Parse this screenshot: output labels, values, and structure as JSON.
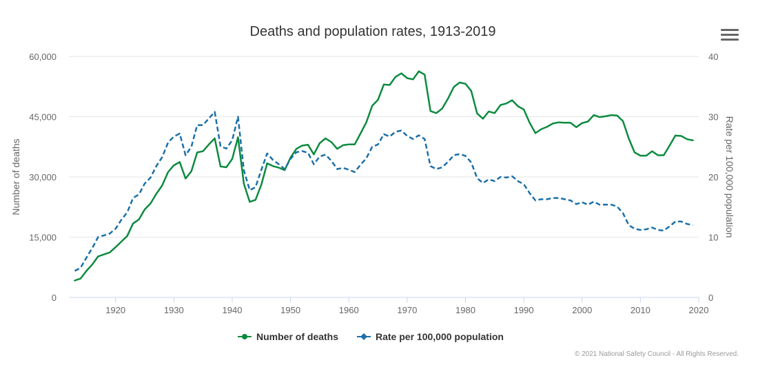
{
  "chart_data": {
    "type": "line",
    "title": "Deaths and population rates, 1913-2019",
    "ylabel_left": "Number of deaths",
    "ylabel_right": "Rate per 100,000 population",
    "xlim": [
      1912,
      2020
    ],
    "ylim_left": [
      0,
      60000
    ],
    "ylim_right": [
      0,
      40
    ],
    "x_ticks": [
      1920,
      1930,
      1940,
      1950,
      1960,
      1970,
      1980,
      1990,
      2000,
      2010,
      2020
    ],
    "y_left_ticks": [
      "0",
      "15,000",
      "30,000",
      "45,000",
      "60,000"
    ],
    "y_left_values": [
      0,
      15000,
      30000,
      45000,
      60000
    ],
    "y_right_ticks": [
      "0",
      "10",
      "20",
      "30",
      "40"
    ],
    "y_right_values": [
      0,
      10,
      20,
      30,
      40
    ],
    "grid": "horizontal",
    "legend_position": "bottom-center",
    "series": [
      {
        "name": "Number of deaths",
        "axis": "left",
        "color": "#0b8a3e",
        "style": "solid",
        "x": [
          1913,
          1914,
          1915,
          1916,
          1917,
          1918,
          1919,
          1920,
          1921,
          1922,
          1923,
          1924,
          1925,
          1926,
          1927,
          1928,
          1929,
          1930,
          1931,
          1932,
          1933,
          1934,
          1935,
          1936,
          1937,
          1938,
          1939,
          1940,
          1941,
          1942,
          1943,
          1944,
          1945,
          1946,
          1947,
          1948,
          1949,
          1950,
          1951,
          1952,
          1953,
          1954,
          1955,
          1956,
          1957,
          1958,
          1959,
          1960,
          1961,
          1962,
          1963,
          1964,
          1965,
          1966,
          1967,
          1968,
          1969,
          1970,
          1971,
          1972,
          1973,
          1974,
          1975,
          1976,
          1977,
          1978,
          1979,
          1980,
          1981,
          1982,
          1983,
          1984,
          1985,
          1986,
          1987,
          1988,
          1989,
          1990,
          1991,
          1992,
          1993,
          1994,
          1995,
          1996,
          1997,
          1998,
          1999,
          2000,
          2001,
          2002,
          2003,
          2004,
          2005,
          2006,
          2007,
          2008,
          2009,
          2010,
          2011,
          2012,
          2013,
          2014,
          2015,
          2016,
          2017,
          2018,
          2019
        ],
        "values": [
          4200,
          4700,
          6600,
          8200,
          10200,
          10700,
          11200,
          12500,
          13900,
          15300,
          18400,
          19400,
          21900,
          23400,
          25800,
          27900,
          31200,
          32900,
          33700,
          29600,
          31400,
          36100,
          36400,
          38100,
          39600,
          32600,
          32400,
          34500,
          39900,
          28300,
          23800,
          24300,
          28100,
          33400,
          32700,
          32300,
          31700,
          34800,
          37000,
          37800,
          38000,
          35600,
          38400,
          39600,
          38700,
          37000,
          37900,
          38100,
          38100,
          40800,
          43600,
          47700,
          49200,
          53000,
          52900,
          54900,
          55800,
          54600,
          54300,
          56300,
          55500,
          46400,
          45900,
          47000,
          49500,
          52400,
          53500,
          53200,
          51400,
          45800,
          44500,
          46300,
          45900,
          47900,
          48300,
          49100,
          47600,
          46800,
          43500,
          40900,
          41900,
          42500,
          43300,
          43600,
          43500,
          43500,
          42400,
          43400,
          43800,
          45400,
          44900,
          45100,
          45400,
          45300,
          43900,
          39600,
          36100,
          35300,
          35300,
          36400,
          35400,
          35400,
          37800,
          40300,
          40200,
          39400,
          39100
        ]
      },
      {
        "name": "Rate per 100,000 population",
        "axis": "right",
        "color": "#1a6fa8",
        "style": "dashed",
        "x": [
          1913,
          1914,
          1915,
          1916,
          1917,
          1918,
          1919,
          1920,
          1921,
          1922,
          1923,
          1924,
          1925,
          1926,
          1927,
          1928,
          1929,
          1930,
          1931,
          1932,
          1933,
          1934,
          1935,
          1936,
          1937,
          1938,
          1939,
          1940,
          1941,
          1942,
          1943,
          1944,
          1945,
          1946,
          1947,
          1948,
          1949,
          1950,
          1951,
          1952,
          1953,
          1954,
          1955,
          1956,
          1957,
          1958,
          1959,
          1960,
          1961,
          1962,
          1963,
          1964,
          1965,
          1966,
          1967,
          1968,
          1969,
          1970,
          1971,
          1972,
          1973,
          1974,
          1975,
          1976,
          1977,
          1978,
          1979,
          1980,
          1981,
          1982,
          1983,
          1984,
          1985,
          1986,
          1987,
          1988,
          1989,
          1990,
          1991,
          1992,
          1993,
          1994,
          1995,
          1996,
          1997,
          1998,
          1999,
          2000,
          2001,
          2002,
          2003,
          2004,
          2005,
          2006,
          2007,
          2008,
          2009,
          2010,
          2011,
          2012,
          2013,
          2014,
          2015,
          2016,
          2017,
          2018,
          2019
        ],
        "values": [
          4.4,
          4.9,
          6.6,
          8.2,
          10.0,
          10.3,
          10.6,
          11.4,
          12.9,
          14.1,
          16.5,
          17.1,
          18.9,
          19.9,
          21.8,
          23.3,
          25.7,
          26.7,
          27.2,
          23.6,
          25.0,
          28.6,
          28.6,
          29.7,
          30.8,
          25.1,
          24.7,
          26.1,
          30.0,
          21.1,
          17.8,
          18.3,
          21.2,
          23.9,
          22.8,
          22.1,
          21.3,
          23.0,
          24.1,
          24.3,
          24.0,
          22.1,
          23.4,
          23.7,
          22.7,
          21.3,
          21.5,
          21.2,
          20.8,
          22.0,
          23.1,
          25.0,
          25.4,
          27.1,
          26.7,
          27.5,
          27.7,
          26.8,
          26.3,
          26.9,
          26.3,
          21.8,
          21.3,
          21.6,
          22.5,
          23.6,
          23.8,
          23.5,
          22.4,
          19.8,
          19.0,
          19.6,
          19.3,
          20.0,
          19.9,
          20.1,
          19.3,
          18.8,
          17.3,
          16.1,
          16.3,
          16.3,
          16.5,
          16.5,
          16.3,
          16.1,
          15.5,
          15.8,
          15.4,
          15.9,
          15.4,
          15.4,
          15.4,
          15.1,
          14.0,
          12.0,
          11.4,
          11.2,
          11.3,
          11.6,
          11.2,
          11.1,
          11.8,
          12.6,
          12.6,
          12.2,
          12.0
        ]
      }
    ],
    "credits": "© 2021 National Safety Council - All Rights Reserved."
  },
  "ui": {
    "menu_icon": "hamburger-menu-icon",
    "background_color": "#ffffff",
    "gridline_color": "#e6e6e6",
    "text_color": "#666666",
    "title_color": "#333333"
  }
}
